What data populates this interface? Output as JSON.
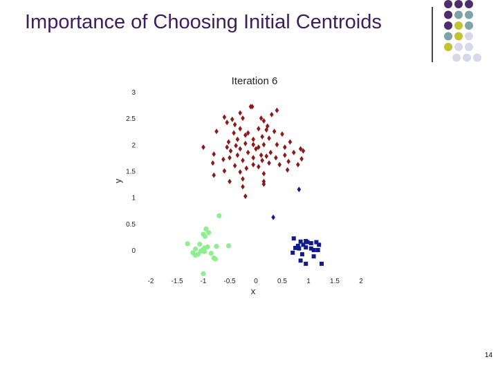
{
  "slide": {
    "title": "Importance of Choosing Initial Centroids",
    "page_number": "14",
    "palette": [
      "#4b2e6a",
      "#7fa3a8",
      "#c2c232",
      "#d8d8e8"
    ]
  },
  "chart_data": {
    "type": "scatter",
    "title": "Iteration 6",
    "xlabel": "x",
    "ylabel": "y",
    "xlim": [
      -2,
      2
    ],
    "ylim": [
      -0.3,
      3
    ],
    "x_ticks": [
      "-2",
      "-1.5",
      "-1",
      "-0.5",
      "0",
      "0.5",
      "1",
      "1.5",
      "2"
    ],
    "x_tick_values": [
      -2,
      -1.5,
      -1,
      -0.5,
      0,
      0.5,
      1,
      1.5,
      2
    ],
    "y_ticks": [
      "0",
      "0.5",
      "1",
      "1.5",
      "2",
      "2.5",
      "3"
    ],
    "y_tick_values": [
      0,
      0.5,
      1,
      1.5,
      2,
      2.5,
      3
    ],
    "series": [
      {
        "name": "cluster-red",
        "color": "#8b1a1a",
        "marker": "diamond",
        "points": [
          [
            -0.1,
            2.72
          ],
          [
            -0.07,
            2.72
          ],
          [
            0.4,
            2.65
          ],
          [
            -0.3,
            2.6
          ],
          [
            0.3,
            2.57
          ],
          [
            -0.6,
            2.52
          ],
          [
            -0.25,
            2.5
          ],
          [
            -0.45,
            2.48
          ],
          [
            0.1,
            2.5
          ],
          [
            0.15,
            2.45
          ],
          [
            -0.55,
            2.42
          ],
          [
            -0.4,
            2.38
          ],
          [
            0.22,
            2.35
          ],
          [
            -0.3,
            2.3
          ],
          [
            0.05,
            2.3
          ],
          [
            -0.75,
            2.25
          ],
          [
            0.2,
            2.28
          ],
          [
            0.35,
            2.25
          ],
          [
            -0.42,
            2.22
          ],
          [
            -0.15,
            2.22
          ],
          [
            0.5,
            2.2
          ],
          [
            -0.2,
            2.18
          ],
          [
            0.12,
            2.15
          ],
          [
            0.25,
            2.12
          ],
          [
            -0.35,
            2.1
          ],
          [
            -0.05,
            2.1
          ],
          [
            -0.52,
            2.05
          ],
          [
            0.65,
            2.05
          ],
          [
            -0.2,
            2.02
          ],
          [
            -0.05,
            2.0
          ],
          [
            0.15,
            2.0
          ],
          [
            0.4,
            2.0
          ],
          [
            -0.38,
            1.98
          ],
          [
            0.05,
            1.95
          ],
          [
            -1.0,
            1.95
          ],
          [
            -0.55,
            1.95
          ],
          [
            0.55,
            1.95
          ],
          [
            0.85,
            1.92
          ],
          [
            -0.3,
            1.92
          ],
          [
            0.0,
            1.92
          ],
          [
            0.9,
            1.88
          ],
          [
            -0.48,
            1.88
          ],
          [
            0.28,
            1.85
          ],
          [
            -0.15,
            1.85
          ],
          [
            0.72,
            1.85
          ],
          [
            -0.8,
            1.82
          ],
          [
            -0.35,
            1.8
          ],
          [
            0.1,
            1.8
          ],
          [
            0.55,
            1.8
          ],
          [
            0.2,
            1.78
          ],
          [
            -0.05,
            1.75
          ],
          [
            -0.5,
            1.75
          ],
          [
            0.38,
            1.75
          ],
          [
            0.87,
            1.73
          ],
          [
            -0.62,
            1.72
          ],
          [
            -0.25,
            1.7
          ],
          [
            0.12,
            1.7
          ],
          [
            0.62,
            1.68
          ],
          [
            -0.82,
            1.65
          ],
          [
            0.25,
            1.65
          ],
          [
            -0.05,
            1.62
          ],
          [
            0.45,
            1.62
          ],
          [
            0.8,
            1.62
          ],
          [
            -0.4,
            1.6
          ],
          [
            0.05,
            1.58
          ],
          [
            -0.18,
            1.55
          ],
          [
            0.6,
            1.52
          ],
          [
            -0.6,
            1.5
          ],
          [
            -0.3,
            1.48
          ],
          [
            0.15,
            1.45
          ],
          [
            -0.8,
            1.42
          ],
          [
            -0.25,
            1.35
          ],
          [
            0.15,
            1.3
          ],
          [
            -0.5,
            1.3
          ],
          [
            0.15,
            1.25
          ],
          [
            -0.25,
            1.2
          ],
          [
            -0.2,
            1.02
          ]
        ]
      },
      {
        "name": "cluster-green",
        "color": "#90ee90",
        "marker": "circle",
        "points": [
          [
            -0.7,
            0.65
          ],
          [
            -0.95,
            0.4
          ],
          [
            -0.9,
            0.33
          ],
          [
            -1.0,
            0.3
          ],
          [
            -0.97,
            0.26
          ],
          [
            -1.3,
            0.12
          ],
          [
            -1.07,
            0.11
          ],
          [
            -0.52,
            0.08
          ],
          [
            -0.75,
            0.07
          ],
          [
            -0.92,
            0.06
          ],
          [
            -0.98,
            0.04
          ],
          [
            -1.15,
            0.02
          ],
          [
            -1.02,
            0.0
          ],
          [
            -1.05,
            -0.02
          ],
          [
            -0.98,
            -0.03
          ],
          [
            -1.2,
            -0.05
          ],
          [
            -0.85,
            -0.06
          ],
          [
            -1.1,
            -0.08
          ],
          [
            -1.15,
            -0.1
          ],
          [
            -0.8,
            -0.15
          ],
          [
            -0.77,
            -0.17
          ],
          [
            -1.0,
            -0.45
          ]
        ]
      },
      {
        "name": "cluster-blue",
        "color": "#101a8c",
        "marker": "square",
        "points": [
          [
            0.72,
            0.22
          ],
          [
            0.95,
            0.17
          ],
          [
            0.85,
            0.16
          ],
          [
            0.98,
            0.15
          ],
          [
            1.15,
            0.15
          ],
          [
            1.05,
            0.13
          ],
          [
            1.2,
            0.1
          ],
          [
            0.9,
            0.1
          ],
          [
            0.8,
            0.08
          ],
          [
            0.75,
            0.04
          ],
          [
            0.95,
            0.05
          ],
          [
            1.05,
            0.03
          ],
          [
            0.82,
            0.03
          ],
          [
            1.1,
            0.0
          ],
          [
            1.18,
            0.0
          ],
          [
            0.7,
            -0.05
          ],
          [
            0.88,
            -0.08
          ],
          [
            1.1,
            -0.12
          ],
          [
            0.85,
            -0.2
          ],
          [
            0.95,
            -0.26
          ],
          [
            1.25,
            -0.26
          ]
        ]
      },
      {
        "name": "cluster-blue-outliers",
        "color": "#101a8c",
        "marker": "diamond",
        "points": [
          [
            0.82,
            1.15
          ],
          [
            0.33,
            0.62
          ]
        ]
      }
    ]
  }
}
